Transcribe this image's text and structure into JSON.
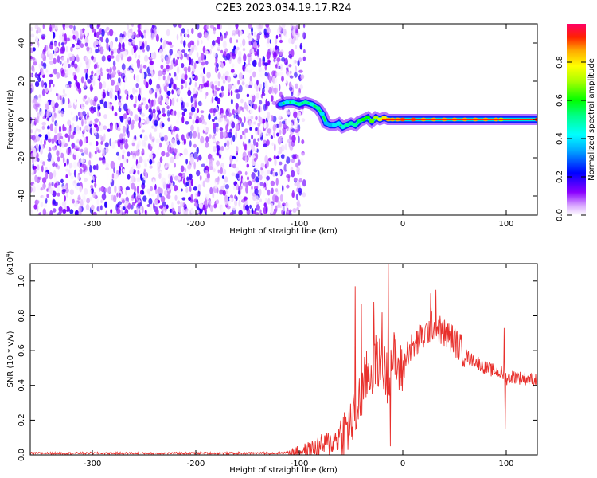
{
  "title": "C2E3.2023.034.19.17.R24",
  "chart_data": [
    {
      "type": "heatmap",
      "xlabel": "Height of straight line (km)",
      "ylabel": "Frequency (Hz)",
      "xlim": [
        -360,
        130
      ],
      "ylim": [
        -50,
        50
      ],
      "x_ticks": [
        -300,
        -200,
        -100,
        0,
        100
      ],
      "x_tick_labels": [
        "-300",
        "-200",
        "-100",
        "0",
        "100"
      ],
      "y_ticks": [
        -40,
        -20,
        0,
        20,
        40
      ],
      "y_tick_labels": [
        "-40",
        "-20",
        "0",
        "20",
        "40"
      ],
      "noise_region_x": [
        -360,
        -95
      ],
      "signal_track": {
        "x": [
          -118,
          -112,
          -106,
          -100,
          -94,
          -88,
          -82,
          -78,
          -74,
          -70,
          -66,
          -62,
          -58,
          -54,
          -50,
          -46,
          -42,
          -38,
          -34,
          -30,
          -26,
          -22,
          -18,
          -14,
          -10,
          -5,
          0,
          10,
          20,
          30,
          40,
          50,
          60,
          70,
          80,
          90,
          95,
          130
        ],
        "y": [
          8,
          9,
          9,
          8,
          9,
          8,
          6,
          3,
          -2,
          -3,
          -3,
          -2,
          -4,
          -3,
          -2,
          -3,
          -1,
          0,
          1,
          -1,
          1,
          0,
          1,
          0,
          0,
          0,
          0,
          0,
          0,
          0,
          0,
          0,
          0,
          0,
          0,
          0,
          0,
          0
        ],
        "amplitude": [
          0.35,
          0.4,
          0.45,
          0.5,
          0.5,
          0.45,
          0.5,
          0.4,
          0.35,
          0.35,
          0.4,
          0.4,
          0.45,
          0.5,
          0.5,
          0.5,
          0.55,
          0.6,
          0.6,
          0.65,
          0.7,
          0.75,
          0.8,
          0.85,
          0.85,
          0.85,
          0.9,
          0.9,
          0.85,
          0.85,
          0.85,
          0.85,
          0.85,
          0.85,
          0.85,
          0.85,
          0.7,
          0.95
        ]
      },
      "colorbar": {
        "label": "Normalized spectral amplitude",
        "range": [
          0,
          1
        ],
        "ticks": [
          0.0,
          0.2,
          0.4,
          0.6,
          0.8
        ],
        "tick_labels": [
          "0.0",
          "0.2",
          "0.4",
          "0.6",
          "0.8"
        ]
      }
    },
    {
      "type": "line",
      "xlabel": "Height of straight line (km)",
      "ylabel": "SNR (10 * v/v)",
      "y_multiplier_label": "(x10",
      "y_multiplier_exp": "4",
      "xlim": [
        -360,
        130
      ],
      "ylim": [
        0,
        1.1
      ],
      "x_ticks": [
        -300,
        -200,
        -100,
        0,
        100
      ],
      "x_tick_labels": [
        "-300",
        "-200",
        "-100",
        "0",
        "100"
      ],
      "y_ticks": [
        0.0,
        0.2,
        0.4,
        0.6,
        0.8,
        1.0
      ],
      "y_tick_labels": [
        "0.0",
        "0.2",
        "0.4",
        "0.6",
        "0.8",
        "1.0"
      ],
      "color": "#e8302c",
      "x": [
        -360,
        -300,
        -250,
        -200,
        -150,
        -120,
        -110,
        -100,
        -95,
        -90,
        -85,
        -80,
        -75,
        -70,
        -65,
        -60,
        -55,
        -50,
        -45,
        -40,
        -35,
        -30,
        -25,
        -20,
        -15,
        -10,
        -5,
        0,
        5,
        10,
        15,
        20,
        25,
        30,
        35,
        40,
        45,
        50,
        55,
        60,
        65,
        70,
        75,
        80,
        85,
        90,
        95,
        98,
        100,
        105,
        110,
        115,
        120,
        125,
        130
      ],
      "y": [
        0.01,
        0.01,
        0.01,
        0.01,
        0.01,
        0.01,
        0.015,
        0.02,
        0.025,
        0.03,
        0.04,
        0.05,
        0.06,
        0.07,
        0.09,
        0.11,
        0.14,
        0.18,
        0.25,
        0.35,
        0.45,
        0.48,
        0.55,
        0.52,
        0.45,
        0.58,
        0.5,
        0.48,
        0.6,
        0.62,
        0.65,
        0.68,
        0.72,
        0.75,
        0.72,
        0.7,
        0.68,
        0.66,
        0.62,
        0.58,
        0.55,
        0.54,
        0.52,
        0.5,
        0.49,
        0.48,
        0.47,
        0.46,
        0.44,
        0.45,
        0.45,
        0.44,
        0.44,
        0.43,
        0.44
      ],
      "spikes": [
        {
          "x": -46,
          "y": 0.97
        },
        {
          "x": -40,
          "y": 0.87
        },
        {
          "x": -28,
          "y": 0.88
        },
        {
          "x": -20,
          "y": 0.82
        },
        {
          "x": -14,
          "y": 1.1
        },
        {
          "x": -12,
          "y": 0.05
        },
        {
          "x": 27,
          "y": 0.93
        },
        {
          "x": 32,
          "y": 0.95
        },
        {
          "x": 98,
          "y": 0.73
        },
        {
          "x": 99,
          "y": 0.15
        }
      ]
    }
  ]
}
